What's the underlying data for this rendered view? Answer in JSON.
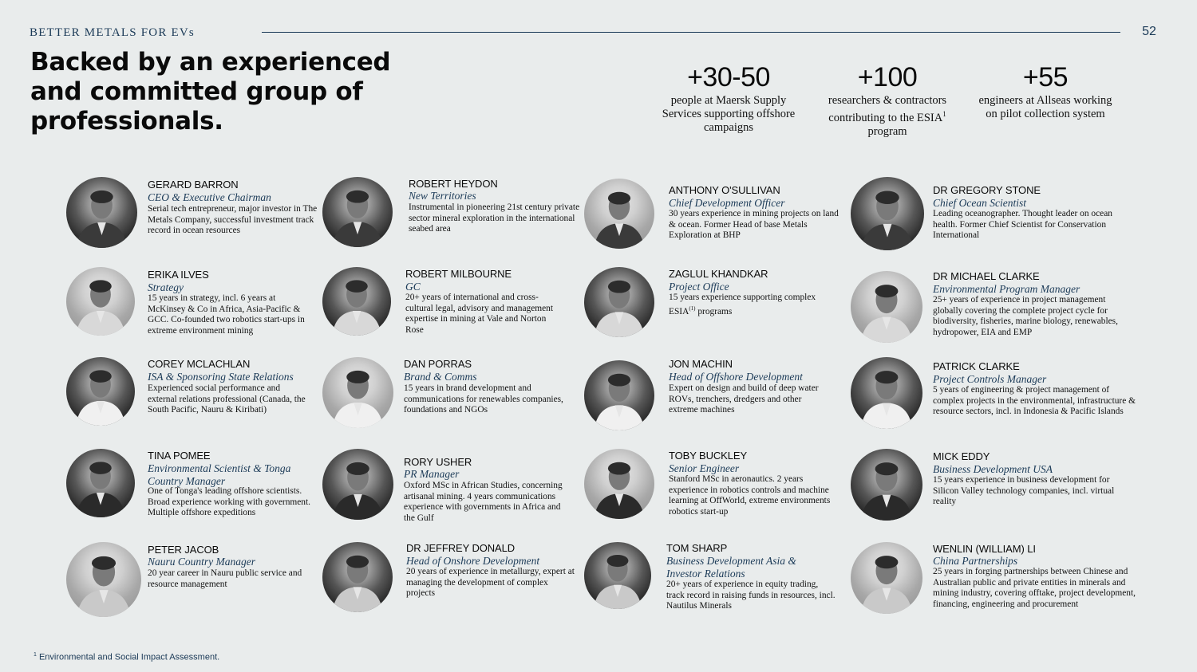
{
  "header": {
    "brand": "BETTER METALS FOR EVs",
    "page_number": "52"
  },
  "headline": "Backed by an experienced and committed group of professionals.",
  "stats": [
    {
      "value": "+30-50",
      "desc": "people at Maersk Supply Services supporting offshore campaigns"
    },
    {
      "value": "+100",
      "desc": "researchers & contractors contributing to the ESIA",
      "desc_sup": "1",
      "desc_after": " program"
    },
    {
      "value": "+55",
      "desc": "engineers at Allseas working on pilot collection system"
    }
  ],
  "people": [
    {
      "name": "GERARD BARRON",
      "role": "CEO & Executive Chairman",
      "desc": "Serial tech entrepreneur, major investor in The Metals Company, successful investment track record in ocean resources"
    },
    {
      "name": "ERIKA ILVES",
      "role": "Strategy",
      "desc": "15 years in strategy, incl. 6 years at McKinsey & Co in Africa, Asia-Pacific & GCC. Co-founded two robotics start-ups in extreme environment mining"
    },
    {
      "name": "COREY MCLACHLAN",
      "role": "ISA & Sponsoring State Relations",
      "desc": "Experienced social performance and external relations professional (Canada, the South Pacific, Nauru & Kiribati)"
    },
    {
      "name": "TINA POMEE",
      "role": "Environmental Scientist & Tonga Country Manager",
      "desc": "One of Tonga's leading offshore scientists. Broad experience working with government. Multiple offshore expeditions"
    },
    {
      "name": "PETER JACOB",
      "role": "Nauru Country Manager",
      "desc": "20 year career in Nauru public service and resource management"
    },
    {
      "name": "ROBERT HEYDON",
      "role": "New Territories",
      "desc": "Instrumental in pioneering 21st century private sector mineral exploration in the international seabed area"
    },
    {
      "name": "ROBERT MILBOURNE",
      "role": "GC",
      "desc": "20+ years of international and cross-cultural legal, advisory and management expertise in mining at Vale and Norton Rose"
    },
    {
      "name": "DAN PORRAS",
      "role": "Brand & Comms",
      "desc": "15 years in brand development and communications for renewables companies, foundations and NGOs"
    },
    {
      "name": "RORY USHER",
      "role": "PR Manager",
      "desc": "Oxford MSc in African Studies, concerning artisanal mining. 4 years communications experience with governments in Africa and the Gulf"
    },
    {
      "name": "DR JEFFREY DONALD",
      "role": "Head of Onshore Development",
      "desc": "20 years of experience in metallurgy, expert at managing the development of complex projects"
    },
    {
      "name": "ANTHONY O'SULLIVAN",
      "role": "Chief Development Officer",
      "desc": "30 years experience in mining projects on land & ocean. Former Head of base Metals Exploration at BHP"
    },
    {
      "name": "ZAGLUL KHANDKAR",
      "role": "Project Office",
      "desc": "15 years experience supporting complex ESIA",
      "desc_sup": "(1)",
      "desc_after": " programs"
    },
    {
      "name": "JON MACHIN",
      "role": "Head of Offshore Development",
      "desc": "Expert on design and build of deep water ROVs, trenchers, dredgers and other extreme machines"
    },
    {
      "name": "TOBY BUCKLEY",
      "role": "Senior Engineer",
      "desc": "Stanford MSc in aeronautics. 2 years experience in robotics controls and machine learning at OffWorld, extreme environments robotics start-up"
    },
    {
      "name": "TOM SHARP",
      "role": "Business Development Asia & Investor Relations",
      "desc": "20+ years of experience in equity trading, track record in raising funds in resources, incl. Nautilus Minerals"
    },
    {
      "name": "DR GREGORY STONE",
      "role": "Chief Ocean Scientist",
      "desc": "Leading oceanographer. Thought leader on ocean health. Former Chief Scientist for Conservation International"
    },
    {
      "name": "DR MICHAEL CLARKE",
      "role": "Environmental Program Manager",
      "desc": "25+ years of experience in project management globally covering the complete project cycle for biodiversity, fisheries, marine biology, renewables, hydropower, EIA and EMP"
    },
    {
      "name": "PATRICK CLARKE",
      "role": "Project Controls Manager",
      "desc": "5 years of engineering & project management of complex projects in the environmental, infrastructure & resource sectors, incl. in Indonesia & Pacific Islands"
    },
    {
      "name": "MICK EDDY",
      "role": "Business Development USA",
      "desc": "15 years experience in business development for Silicon Valley technology companies, incl. virtual reality"
    },
    {
      "name": "WENLIN (WILLIAM) LI",
      "role": "China Partnerships",
      "desc": "25 years in forging partnerships between Chinese and Australian public and private entities in minerals and mining industry, covering offtake, project development, financing, engineering and procurement"
    }
  ],
  "footnote": {
    "marker": "1",
    "text": " Environmental and Social Impact Assessment."
  }
}
